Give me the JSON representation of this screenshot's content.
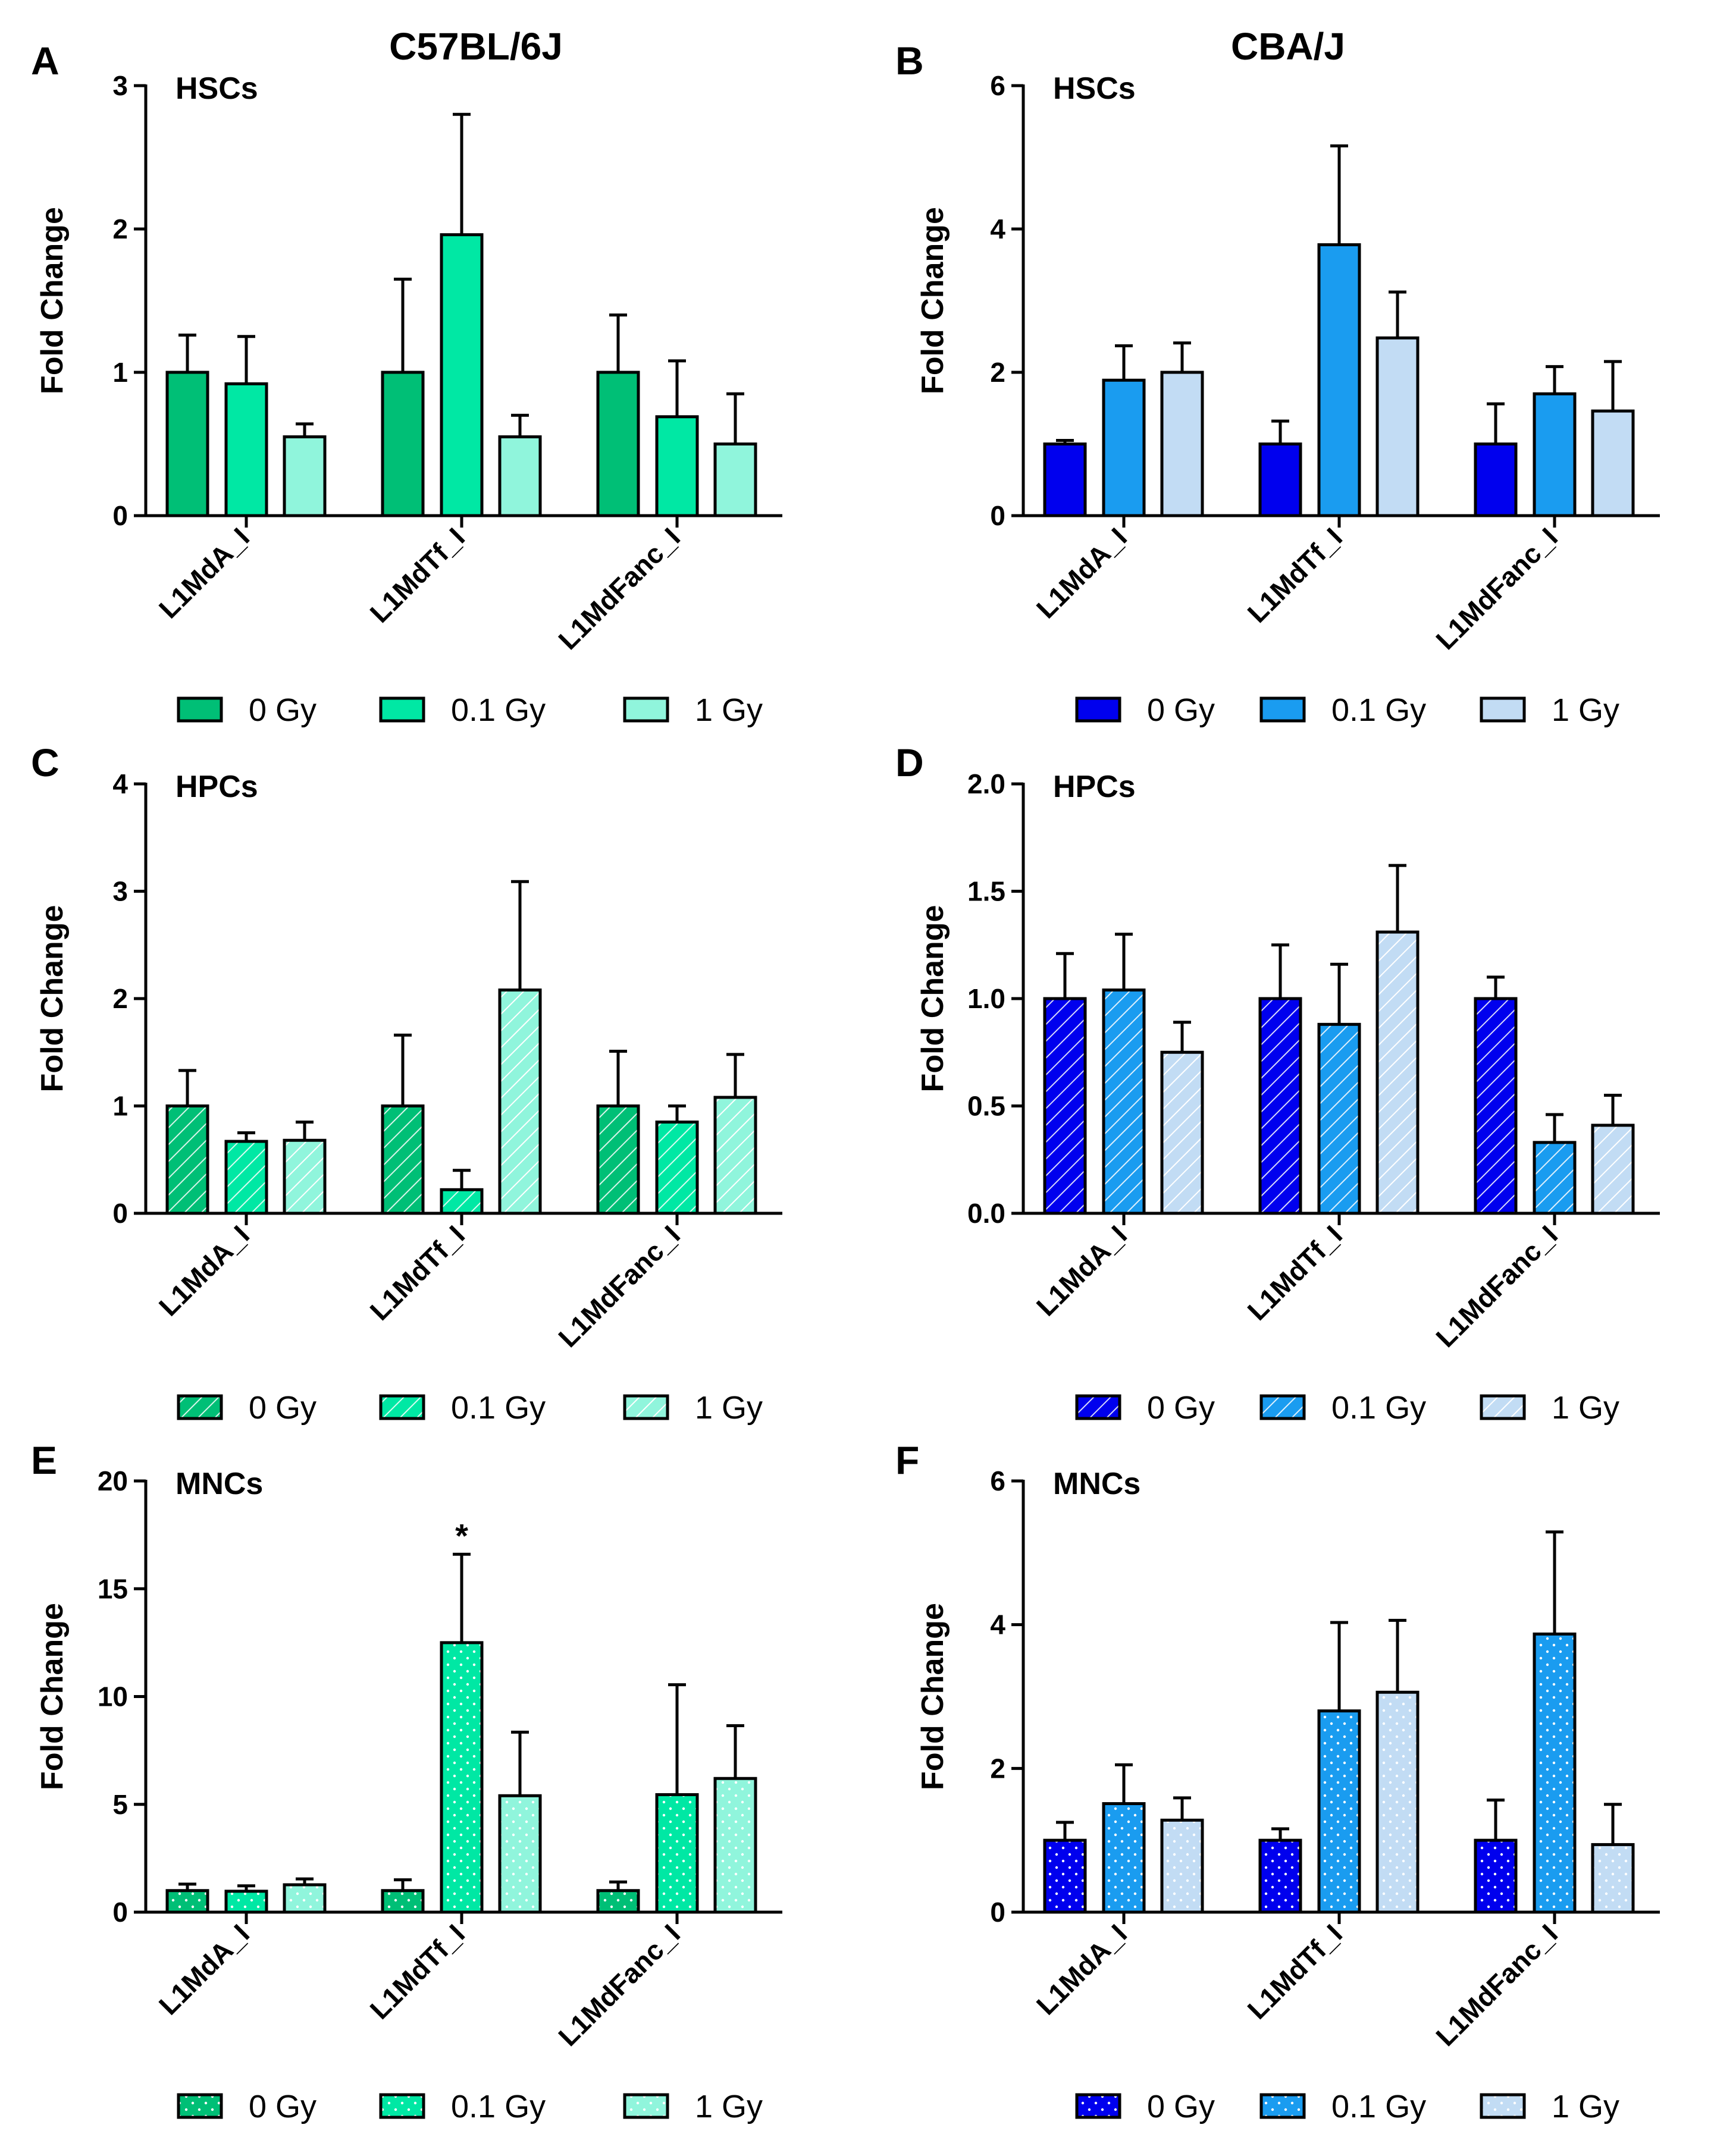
{
  "figure": {
    "strain_left": "C57BL/6J",
    "strain_right": "CBA/J"
  },
  "colors": {
    "c57": [
      "#00bf76",
      "#00e8a4",
      "#90f5dc"
    ],
    "cba": [
      "#0000ee",
      "#1a9cf0",
      "#c2dcf4"
    ]
  },
  "chart_data": [
    {
      "panel": "A",
      "type": "bar",
      "title": "HSCs",
      "ylabel": "Fold Change",
      "ylim": [
        0,
        3
      ],
      "yticks": [
        "0",
        "1",
        "2",
        "3"
      ],
      "pattern": "solid",
      "palette": "c57",
      "categories": [
        "L1MdA_I",
        "L1MdTf_I",
        "L1MdFanc_I"
      ],
      "series": [
        {
          "name": "0 Gy",
          "values": [
            1.0,
            1.0,
            1.0
          ],
          "errors": [
            0.26,
            0.65,
            0.4
          ]
        },
        {
          "name": "0.1 Gy",
          "values": [
            0.92,
            1.96,
            0.69
          ],
          "errors": [
            0.33,
            0.84,
            0.39
          ]
        },
        {
          "name": "1 Gy",
          "values": [
            0.55,
            0.55,
            0.5
          ],
          "errors": [
            0.09,
            0.15,
            0.35
          ]
        }
      ],
      "annotations": []
    },
    {
      "panel": "B",
      "type": "bar",
      "title": "HSCs",
      "ylabel": "Fold Change",
      "ylim": [
        0,
        6
      ],
      "yticks": [
        "0",
        "2",
        "4",
        "6"
      ],
      "pattern": "solid",
      "palette": "cba",
      "categories": [
        "L1MdA_I",
        "L1MdTf_I",
        "L1MdFanc_I"
      ],
      "series": [
        {
          "name": "0 Gy",
          "values": [
            1.0,
            1.0,
            1.0
          ],
          "errors": [
            0.05,
            0.32,
            0.56
          ]
        },
        {
          "name": "0.1 Gy",
          "values": [
            1.89,
            3.78,
            1.7
          ],
          "errors": [
            0.48,
            1.38,
            0.38
          ]
        },
        {
          "name": "1 Gy",
          "values": [
            2.0,
            2.48,
            1.46
          ],
          "errors": [
            0.41,
            0.64,
            0.69
          ]
        }
      ],
      "annotations": []
    },
    {
      "panel": "C",
      "type": "bar",
      "title": "HPCs",
      "ylabel": "Fold Change",
      "ylim": [
        0,
        4
      ],
      "yticks": [
        "0",
        "1",
        "2",
        "3",
        "4"
      ],
      "pattern": "hatch",
      "palette": "c57",
      "categories": [
        "L1MdA_I",
        "L1MdTf_I",
        "L1MdFanc_I"
      ],
      "series": [
        {
          "name": "0 Gy",
          "values": [
            1.0,
            1.0,
            1.0
          ],
          "errors": [
            0.33,
            0.66,
            0.51
          ]
        },
        {
          "name": "0.1 Gy",
          "values": [
            0.67,
            0.22,
            0.85
          ],
          "errors": [
            0.08,
            0.18,
            0.15
          ]
        },
        {
          "name": "1 Gy",
          "values": [
            0.68,
            2.08,
            1.08
          ],
          "errors": [
            0.17,
            1.01,
            0.4
          ]
        }
      ],
      "annotations": []
    },
    {
      "panel": "D",
      "type": "bar",
      "title": "HPCs",
      "ylabel": "Fold Change",
      "ylim": [
        0,
        2
      ],
      "yticks": [
        "0.0",
        "0.5",
        "1.0",
        "1.5",
        "2.0"
      ],
      "pattern": "hatch",
      "palette": "cba",
      "categories": [
        "L1MdA_I",
        "L1MdTf_I",
        "L1MdFanc_I"
      ],
      "series": [
        {
          "name": "0 Gy",
          "values": [
            1.0,
            1.0,
            1.0
          ],
          "errors": [
            0.21,
            0.25,
            0.1
          ]
        },
        {
          "name": "0.1 Gy",
          "values": [
            1.04,
            0.88,
            0.33
          ],
          "errors": [
            0.26,
            0.28,
            0.13
          ]
        },
        {
          "name": "1 Gy",
          "values": [
            0.75,
            1.31,
            0.41
          ],
          "errors": [
            0.14,
            0.31,
            0.14
          ]
        }
      ],
      "annotations": []
    },
    {
      "panel": "E",
      "type": "bar",
      "title": "MNCs",
      "ylabel": "Fold Change",
      "ylim": [
        0,
        20
      ],
      "yticks": [
        "0",
        "5",
        "10",
        "15",
        "20"
      ],
      "pattern": "dots",
      "palette": "c57",
      "categories": [
        "L1MdA_I",
        "L1MdTf_I",
        "L1MdFanc_I"
      ],
      "series": [
        {
          "name": "0 Gy",
          "values": [
            1.0,
            1.0,
            1.0
          ],
          "errors": [
            0.3,
            0.5,
            0.4
          ]
        },
        {
          "name": "0.1 Gy",
          "values": [
            0.97,
            12.5,
            5.45
          ],
          "errors": [
            0.25,
            4.1,
            5.1
          ]
        },
        {
          "name": "1 Gy",
          "values": [
            1.27,
            5.4,
            6.2
          ],
          "errors": [
            0.27,
            2.95,
            2.45
          ]
        }
      ],
      "annotations": [
        {
          "text": "*",
          "category": 1,
          "series": 1
        }
      ]
    },
    {
      "panel": "F",
      "type": "bar",
      "title": "MNCs",
      "ylabel": "Fold Change",
      "ylim": [
        0,
        6
      ],
      "yticks": [
        "0",
        "2",
        "4",
        "6"
      ],
      "pattern": "dots",
      "palette": "cba",
      "categories": [
        "L1MdA_I",
        "L1MdTf_I",
        "L1MdFanc_I"
      ],
      "series": [
        {
          "name": "0 Gy",
          "values": [
            1.0,
            1.0,
            1.0
          ],
          "errors": [
            0.25,
            0.16,
            0.56
          ]
        },
        {
          "name": "0.1 Gy",
          "values": [
            1.51,
            2.8,
            3.87
          ],
          "errors": [
            0.54,
            1.23,
            1.42
          ]
        },
        {
          "name": "1 Gy",
          "values": [
            1.28,
            3.06,
            0.94
          ],
          "errors": [
            0.31,
            1.0,
            0.56
          ]
        }
      ],
      "annotations": []
    }
  ]
}
